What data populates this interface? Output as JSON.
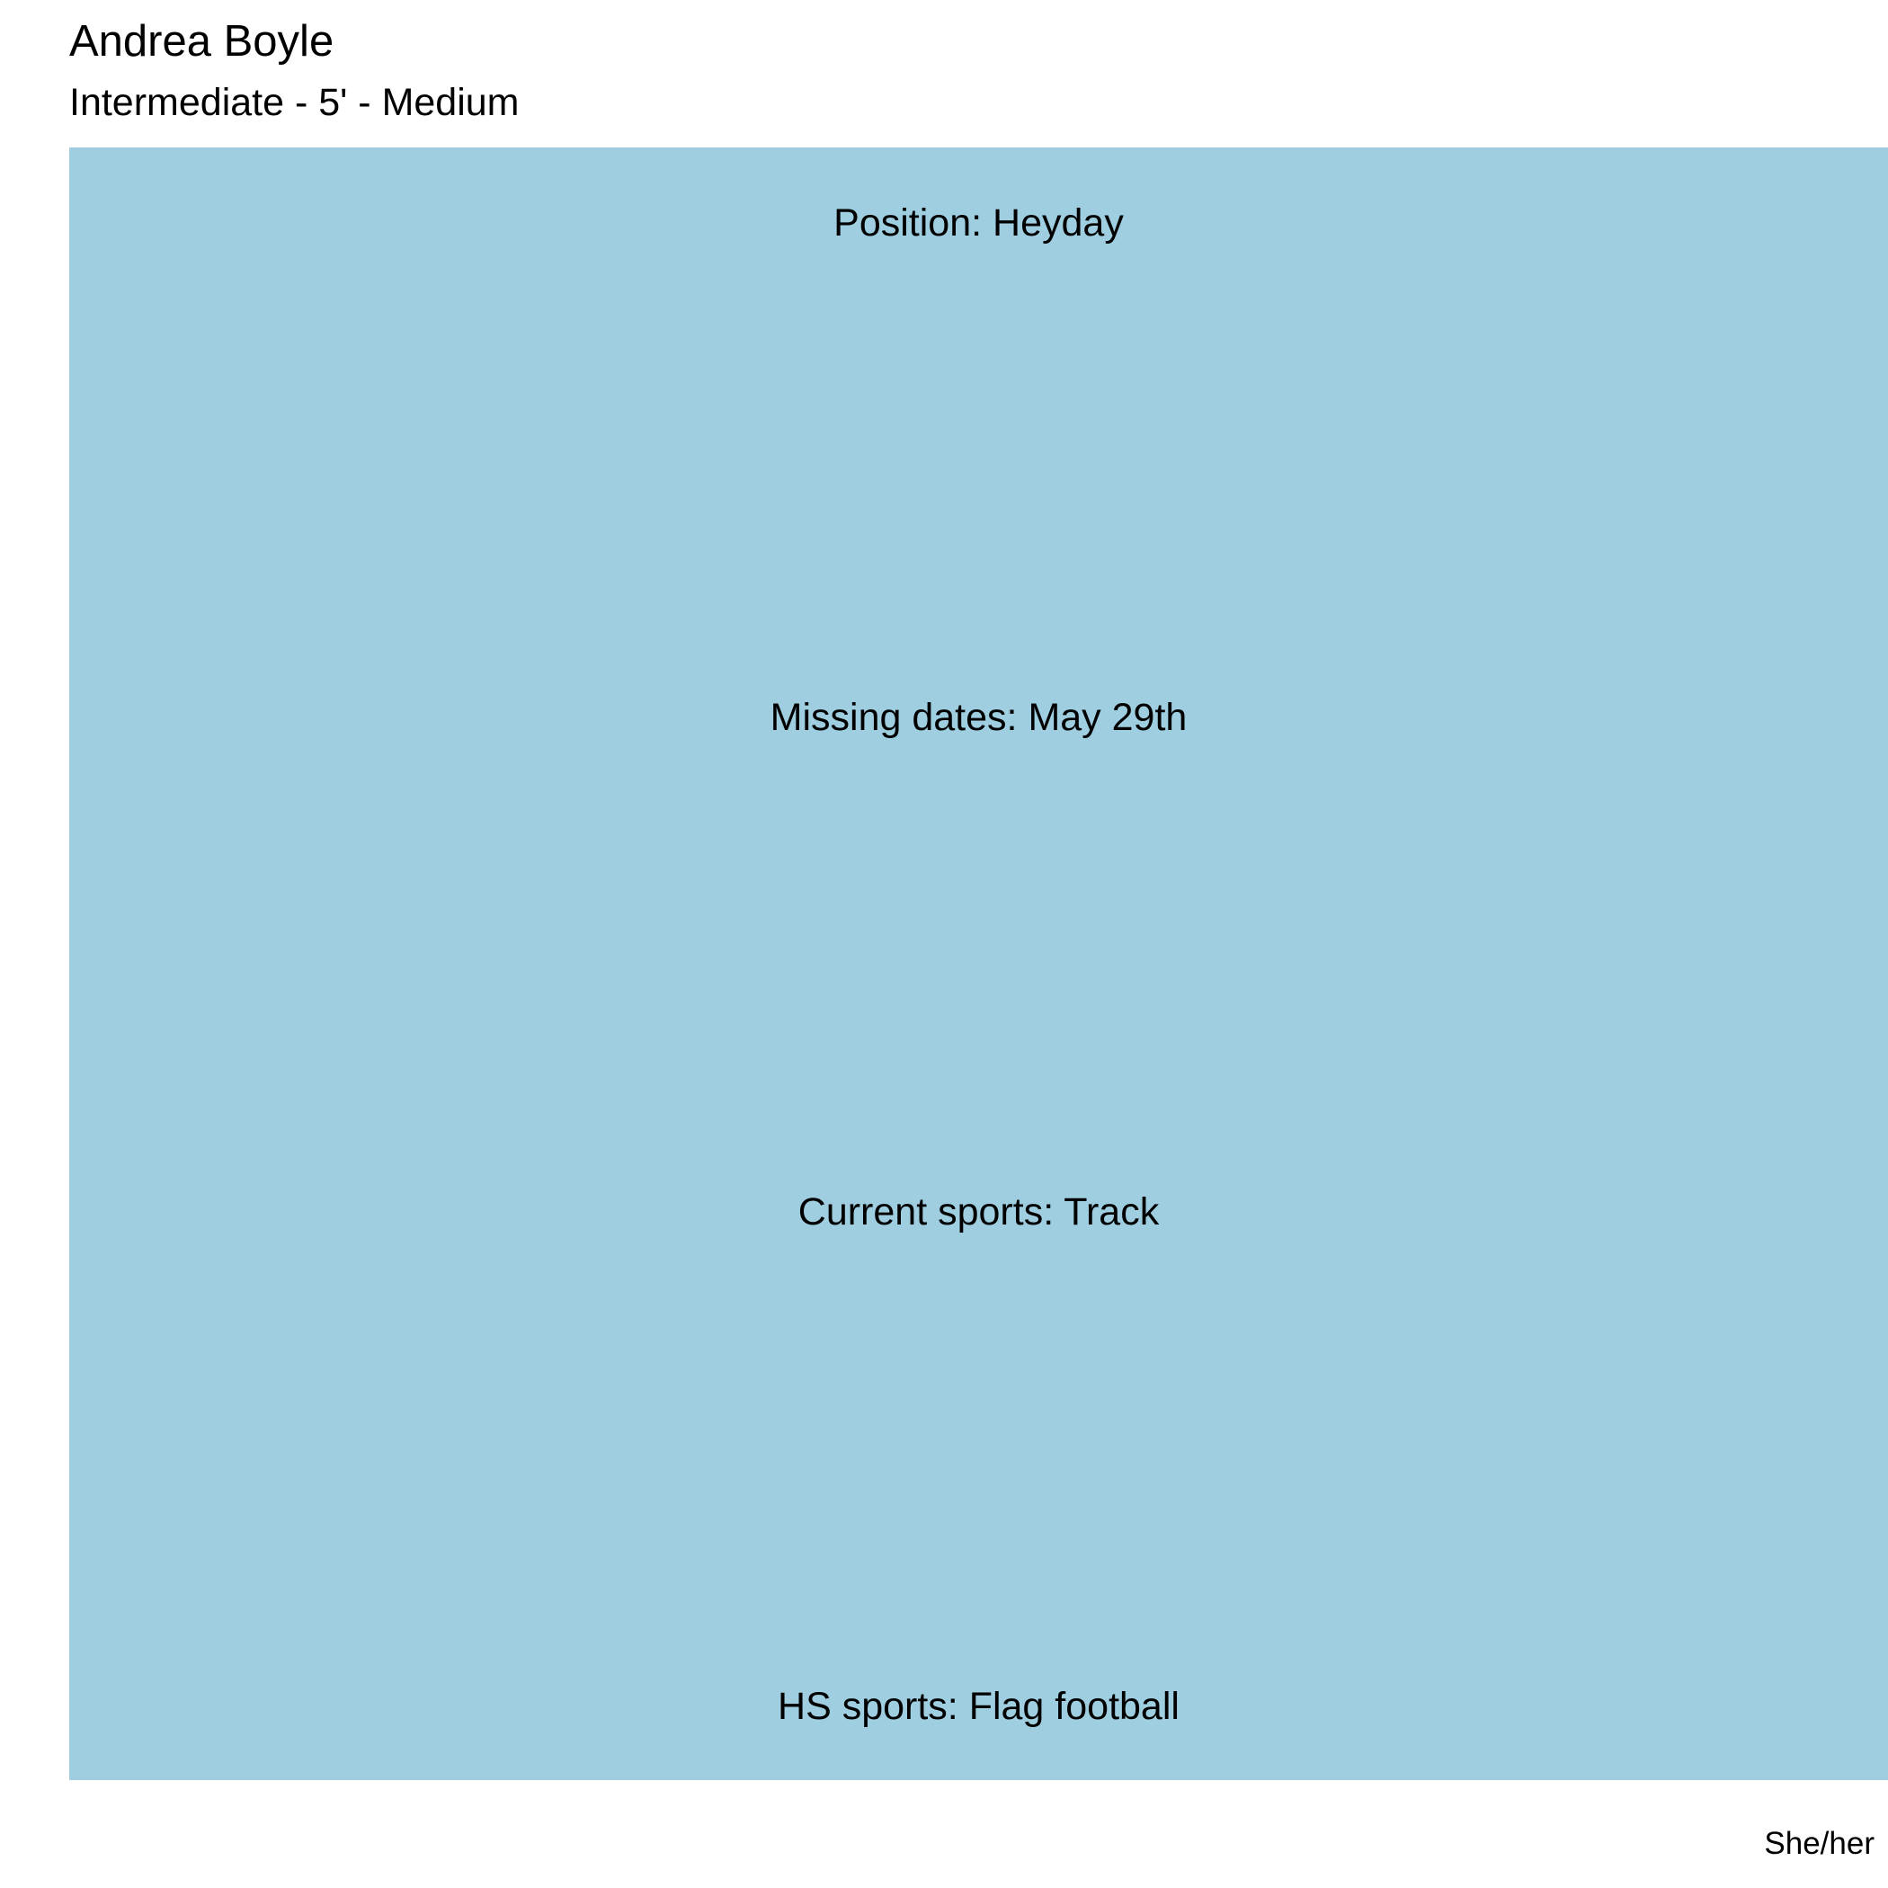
{
  "header": {
    "name": "Andrea Boyle",
    "subtitle": "Intermediate - 5' - Medium"
  },
  "card": {
    "background_color": "#9ecee0",
    "fields": [
      "Position: Heyday",
      "Missing dates: May 29th",
      "Current sports: Track",
      "HS sports: Flag football"
    ]
  },
  "footer": {
    "pronouns": "She/her"
  }
}
